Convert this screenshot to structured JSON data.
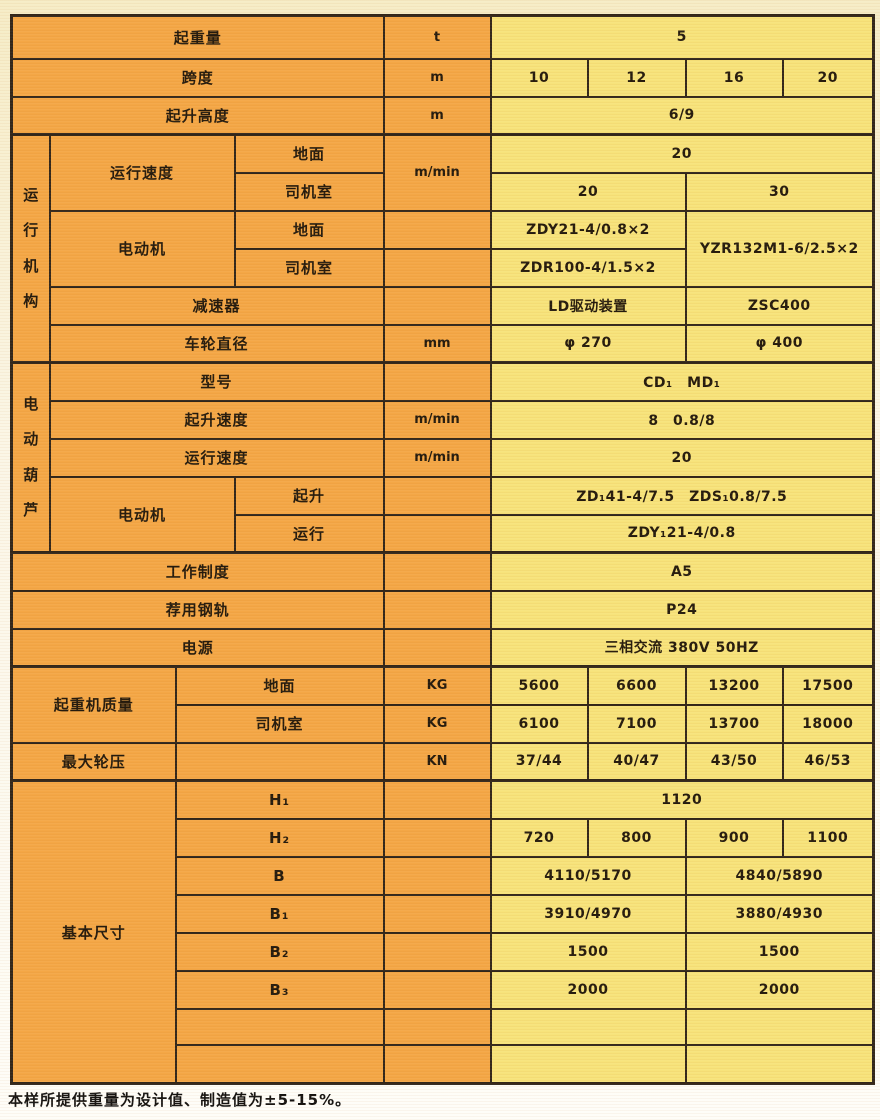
{
  "colors": {
    "border": "#31261a",
    "cell_orange": "#f4a746",
    "cell_yellow": "#f7e37b"
  },
  "footnote": "本样所提供重量为设计值、制造值为±5-15%。",
  "table": {
    "rows": [
      {
        "cells": [
          {
            "t": "起重量",
            "cs": 4,
            "c": "l"
          },
          {
            "t": "t",
            "c": "u"
          },
          {
            "t": "5",
            "cs": 4,
            "c": "v"
          }
        ]
      },
      {
        "cells": [
          {
            "t": "跨度",
            "cs": 4,
            "c": "l"
          },
          {
            "t": "m",
            "c": "u"
          },
          {
            "t": "10",
            "c": "v"
          },
          {
            "t": "12",
            "c": "v"
          },
          {
            "t": "16",
            "c": "v"
          },
          {
            "t": "20",
            "c": "v"
          }
        ]
      },
      {
        "cells": [
          {
            "t": "起升高度",
            "cs": 4,
            "c": "l"
          },
          {
            "t": "m",
            "c": "u"
          },
          {
            "t": "6/9",
            "cs": 4,
            "c": "v"
          }
        ]
      },
      {
        "cells": [
          {
            "t": "运\n行\n机\n构",
            "rs": 6,
            "c": "g"
          },
          {
            "t": "运行速度",
            "cs": 2,
            "rs": 2,
            "c": "l"
          },
          {
            "t": "地面",
            "c": "l"
          },
          {
            "t": "m/min",
            "rs": 2,
            "c": "u"
          },
          {
            "t": "20",
            "cs": 4,
            "c": "v"
          }
        ]
      },
      {
        "cells": [
          {
            "t": "司机室",
            "c": "l"
          },
          {
            "t": "20",
            "cs": 2,
            "c": "v"
          },
          {
            "t": "30",
            "cs": 2,
            "c": "v"
          }
        ]
      },
      {
        "cells": [
          {
            "t": "电动机",
            "cs": 2,
            "rs": 2,
            "c": "l"
          },
          {
            "t": "地面",
            "c": "l"
          },
          {
            "t": "",
            "c": "u"
          },
          {
            "t": "ZDY21-4/0.8×2",
            "cs": 2,
            "c": "v"
          },
          {
            "t": "YZR132M1-6/2.5×2",
            "cs": 2,
            "rs": 2,
            "c": "v"
          }
        ]
      },
      {
        "cells": [
          {
            "t": "司机室",
            "c": "l"
          },
          {
            "t": "",
            "c": "u"
          },
          {
            "t": "ZDR100-4/1.5×2",
            "cs": 2,
            "c": "v"
          }
        ]
      },
      {
        "cells": [
          {
            "t": "减速器",
            "cs": 3,
            "c": "l"
          },
          {
            "t": "",
            "c": "u"
          },
          {
            "t": "LD驱动装置",
            "cs": 2,
            "c": "v"
          },
          {
            "t": "ZSC400",
            "cs": 2,
            "c": "v"
          }
        ]
      },
      {
        "cells": [
          {
            "t": "车轮直径",
            "cs": 3,
            "c": "l"
          },
          {
            "t": "mm",
            "c": "u"
          },
          {
            "t": "φ 270",
            "cs": 2,
            "c": "v"
          },
          {
            "t": "φ 400",
            "cs": 2,
            "c": "v"
          }
        ]
      },
      {
        "cells": [
          {
            "t": "电\n动\n葫\n芦",
            "rs": 5,
            "c": "g"
          },
          {
            "t": "型号",
            "cs": 3,
            "c": "l"
          },
          {
            "t": "",
            "c": "u"
          },
          {
            "t": "CD₁　MD₁",
            "cs": 4,
            "c": "v"
          }
        ]
      },
      {
        "cells": [
          {
            "t": "起升速度",
            "cs": 3,
            "c": "l"
          },
          {
            "t": "m/min",
            "c": "u"
          },
          {
            "t": "8　0.8/8",
            "cs": 4,
            "c": "v"
          }
        ]
      },
      {
        "cells": [
          {
            "t": "运行速度",
            "cs": 3,
            "c": "l"
          },
          {
            "t": "m/min",
            "c": "u"
          },
          {
            "t": "20",
            "cs": 4,
            "c": "v"
          }
        ]
      },
      {
        "cells": [
          {
            "t": "电动机",
            "cs": 2,
            "rs": 2,
            "c": "l"
          },
          {
            "t": "起升",
            "c": "l"
          },
          {
            "t": "",
            "c": "u"
          },
          {
            "t": "ZD₁41-4/7.5　ZDS₁0.8/7.5",
            "cs": 4,
            "c": "v"
          }
        ]
      },
      {
        "cells": [
          {
            "t": "运行",
            "c": "l"
          },
          {
            "t": "",
            "c": "u"
          },
          {
            "t": "ZDY₁21-4/0.8",
            "cs": 4,
            "c": "v"
          }
        ]
      },
      {
        "cells": [
          {
            "t": "工作制度",
            "cs": 4,
            "c": "l"
          },
          {
            "t": "",
            "c": "u"
          },
          {
            "t": "A5",
            "cs": 4,
            "c": "v"
          }
        ]
      },
      {
        "cells": [
          {
            "t": "荐用钢轨",
            "cs": 4,
            "c": "l"
          },
          {
            "t": "",
            "c": "u"
          },
          {
            "t": "P24",
            "cs": 4,
            "c": "v"
          }
        ]
      },
      {
        "cells": [
          {
            "t": "电源",
            "cs": 4,
            "c": "l"
          },
          {
            "t": "",
            "c": "u"
          },
          {
            "t": "三相交流 380V 50HZ",
            "cs": 4,
            "c": "v"
          }
        ]
      },
      {
        "cells": [
          {
            "t": "起重机质量",
            "cs": 2,
            "rs": 2,
            "c": "l"
          },
          {
            "t": "地面",
            "cs": 2,
            "c": "l"
          },
          {
            "t": "KG",
            "c": "u"
          },
          {
            "t": "5600",
            "c": "v"
          },
          {
            "t": "6600",
            "c": "v"
          },
          {
            "t": "13200",
            "c": "v"
          },
          {
            "t": "17500",
            "c": "v"
          }
        ]
      },
      {
        "cells": [
          {
            "t": "司机室",
            "cs": 2,
            "c": "l"
          },
          {
            "t": "KG",
            "c": "u"
          },
          {
            "t": "6100",
            "c": "v"
          },
          {
            "t": "7100",
            "c": "v"
          },
          {
            "t": "13700",
            "c": "v"
          },
          {
            "t": "18000",
            "c": "v"
          }
        ]
      },
      {
        "cells": [
          {
            "t": "最大轮压",
            "cs": 2,
            "c": "l"
          },
          {
            "t": "",
            "cs": 2,
            "c": "l"
          },
          {
            "t": "KN",
            "c": "u"
          },
          {
            "t": "37/44",
            "c": "v"
          },
          {
            "t": "40/47",
            "c": "v"
          },
          {
            "t": "43/50",
            "c": "v"
          },
          {
            "t": "46/53",
            "c": "v"
          }
        ]
      },
      {
        "cells": [
          {
            "t": "基本尺寸",
            "cs": 2,
            "rs": 8,
            "c": "l"
          },
          {
            "t": "H₁",
            "cs": 2,
            "c": "l"
          },
          {
            "t": "",
            "c": "u"
          },
          {
            "t": "1120",
            "cs": 4,
            "c": "v"
          }
        ]
      },
      {
        "cells": [
          {
            "t": "H₂",
            "cs": 2,
            "c": "l"
          },
          {
            "t": "",
            "c": "u"
          },
          {
            "t": "720",
            "c": "v"
          },
          {
            "t": "800",
            "c": "v"
          },
          {
            "t": "900",
            "c": "v"
          },
          {
            "t": "1100",
            "c": "v"
          }
        ]
      },
      {
        "cells": [
          {
            "t": "B",
            "cs": 2,
            "c": "l"
          },
          {
            "t": "",
            "c": "u"
          },
          {
            "t": "4110/5170",
            "cs": 2,
            "c": "v"
          },
          {
            "t": "4840/5890",
            "cs": 2,
            "c": "v"
          }
        ]
      },
      {
        "cells": [
          {
            "t": "B₁",
            "cs": 2,
            "c": "l"
          },
          {
            "t": "",
            "c": "u"
          },
          {
            "t": "3910/4970",
            "cs": 2,
            "c": "v"
          },
          {
            "t": "3880/4930",
            "cs": 2,
            "c": "v"
          }
        ]
      },
      {
        "cells": [
          {
            "t": "B₂",
            "cs": 2,
            "c": "l"
          },
          {
            "t": "",
            "c": "u"
          },
          {
            "t": "1500",
            "cs": 2,
            "c": "v"
          },
          {
            "t": "1500",
            "cs": 2,
            "c": "v"
          }
        ]
      },
      {
        "cells": [
          {
            "t": "B₃",
            "cs": 2,
            "c": "l"
          },
          {
            "t": "",
            "c": "u"
          },
          {
            "t": "2000",
            "cs": 2,
            "c": "v"
          },
          {
            "t": "2000",
            "cs": 2,
            "c": "v"
          }
        ]
      },
      {
        "cells": [
          {
            "t": "",
            "cs": 2,
            "c": "l"
          },
          {
            "t": "",
            "c": "u"
          },
          {
            "t": "",
            "cs": 2,
            "c": "v"
          },
          {
            "t": "",
            "cs": 2,
            "c": "v"
          }
        ]
      },
      {
        "cells": [
          {
            "t": "",
            "cs": 2,
            "c": "l"
          },
          {
            "t": "",
            "c": "u"
          },
          {
            "t": "",
            "cs": 2,
            "c": "v"
          },
          {
            "t": "",
            "cs": 2,
            "c": "v"
          }
        ]
      }
    ]
  }
}
